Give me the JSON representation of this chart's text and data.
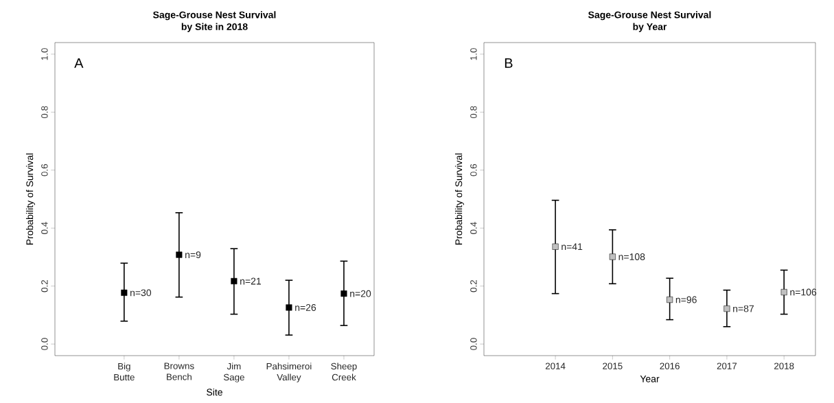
{
  "chart_data": [
    {
      "type": "scatter",
      "title": "Sage-Grouse Nest Survival",
      "subtitle": "by Site in 2018",
      "xlabel": "Site",
      "ylabel": "Probability of Survival",
      "marker": "square",
      "color": "#000000",
      "categories": [
        "Big Butte",
        "Browns Bench",
        "Jim Sage",
        "Pahsimeroi Valley",
        "Sheep Creek"
      ],
      "values": [
        0.177,
        0.308,
        0.217,
        0.126,
        0.174
      ],
      "errors": [
        [
          0.079,
          0.279
        ],
        [
          0.162,
          0.453
        ],
        [
          0.103,
          0.329
        ],
        [
          0.031,
          0.22
        ],
        [
          0.064,
          0.286
        ]
      ],
      "ylim": [
        -0.04,
        1.04
      ],
      "yticks": [
        {
          "value": 0,
          "label": "0.0"
        },
        {
          "value": 0.2,
          "label": "0.2"
        },
        {
          "value": 0.4,
          "label": "0.4"
        },
        {
          "value": 0.6,
          "label": "0.6"
        },
        {
          "value": 0.8,
          "label": "0.8"
        },
        {
          "value": 1,
          "label": "1.0"
        }
      ],
      "annotations": [
        "A",
        {
          "text": "n=30",
          "x": "Big Butte",
          "y": 0.177
        },
        {
          "text": "n=9",
          "x": "Browns Bench",
          "y": 0.308
        },
        {
          "text": "n=21",
          "x": "Jim Sage",
          "y": 0.217
        },
        {
          "text": "n=26",
          "x": "Pahsimeroi Valley",
          "y": 0.126
        },
        {
          "text": "n=20",
          "x": "Sheep Creek",
          "y": 0.174
        }
      ]
    },
    {
      "type": "scatter",
      "title": "Sage-Grouse Nest Survival",
      "subtitle": "by Year",
      "xlabel": "Year",
      "ylabel": "Probability of Survival",
      "marker": "square",
      "color": "#c0c0c0",
      "x": [
        2014,
        2015,
        2016,
        2017,
        2018
      ],
      "values": [
        0.336,
        0.301,
        0.153,
        0.122,
        0.179
      ],
      "errors": [
        [
          0.174,
          0.496
        ],
        [
          0.208,
          0.394
        ],
        [
          0.084,
          0.227
        ],
        [
          0.06,
          0.186
        ],
        [
          0.103,
          0.255
        ]
      ],
      "xlim": [
        2012.75,
        2018.55
      ],
      "xticks": [
        2014,
        2015,
        2016,
        2017,
        2018
      ],
      "ylim": [
        -0.04,
        1.04
      ],
      "yticks": [
        {
          "value": 0,
          "label": "0.0"
        },
        {
          "value": 0.2,
          "label": "0.2"
        },
        {
          "value": 0.4,
          "label": "0.4"
        },
        {
          "value": 0.6,
          "label": "0.6"
        },
        {
          "value": 0.8,
          "label": "0.8"
        },
        {
          "value": 1,
          "label": "1.0"
        }
      ],
      "annotations": [
        "B",
        {
          "text": "n=41",
          "x": 2014,
          "y": 0.336
        },
        {
          "text": "n=108",
          "x": 2015,
          "y": 0.301
        },
        {
          "text": "n=96",
          "x": 2016,
          "y": 0.153
        },
        {
          "text": "n=87",
          "x": 2017,
          "y": 0.122
        },
        {
          "text": "n=106",
          "x": 2018,
          "y": 0.179
        }
      ]
    }
  ]
}
